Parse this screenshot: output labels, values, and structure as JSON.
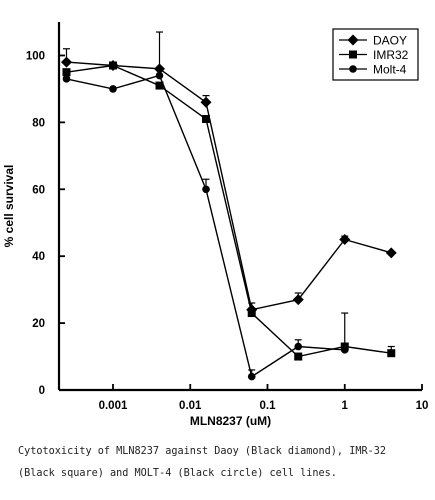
{
  "chart_data": {
    "type": "line",
    "xlabel": "MLN8237 (uM)",
    "ylabel": "% cell survival",
    "x_scale": "log",
    "xlim": [
      0.0002,
      10
    ],
    "ylim": [
      0,
      110
    ],
    "x_ticks": [
      0.001,
      0.01,
      0.1,
      1,
      10
    ],
    "x_tick_labels": [
      "0.001",
      "0.01",
      "0.1",
      "1",
      "10"
    ],
    "y_ticks": [
      0,
      20,
      40,
      60,
      80,
      100
    ],
    "y_tick_labels": [
      "0",
      "20",
      "40",
      "60",
      "80",
      "100"
    ],
    "grid": false,
    "legend_position": "top-right",
    "series": [
      {
        "name": "DAOY",
        "marker": "diamond",
        "points": [
          {
            "x": 0.00025,
            "y": 98,
            "err": 4
          },
          {
            "x": 0.001,
            "y": 97,
            "err": 0
          },
          {
            "x": 0.004,
            "y": 96,
            "err": 11
          },
          {
            "x": 0.016,
            "y": 86,
            "err": 2
          },
          {
            "x": 0.0625,
            "y": 24,
            "err": 2
          },
          {
            "x": 0.25,
            "y": 27,
            "err": 2
          },
          {
            "x": 1,
            "y": 45,
            "err": 1
          },
          {
            "x": 4,
            "y": 41,
            "err": 0
          }
        ]
      },
      {
        "name": "IMR32",
        "marker": "square",
        "points": [
          {
            "x": 0.00025,
            "y": 95,
            "err": 0
          },
          {
            "x": 0.001,
            "y": 97,
            "err": 0
          },
          {
            "x": 0.004,
            "y": 91,
            "err": 0
          },
          {
            "x": 0.016,
            "y": 81,
            "err": 0
          },
          {
            "x": 0.0625,
            "y": 23,
            "err": 0
          },
          {
            "x": 0.25,
            "y": 10,
            "err": 0
          },
          {
            "x": 1,
            "y": 13,
            "err": 10
          },
          {
            "x": 4,
            "y": 11,
            "err": 2
          }
        ]
      },
      {
        "name": "Molt-4",
        "marker": "circle",
        "points": [
          {
            "x": 0.00025,
            "y": 93,
            "err": 0
          },
          {
            "x": 0.001,
            "y": 90,
            "err": 0
          },
          {
            "x": 0.004,
            "y": 94,
            "err": 0
          },
          {
            "x": 0.016,
            "y": 60,
            "err": 3
          },
          {
            "x": 0.0625,
            "y": 4,
            "err": 2
          },
          {
            "x": 0.25,
            "y": 13,
            "err": 2
          },
          {
            "x": 1,
            "y": 12,
            "err": 0
          }
        ]
      }
    ]
  },
  "caption": {
    "line1": "Cytotoxicity of MLN8237 against Daoy (Black diamond), IMR-32",
    "line2": "(Black square) and MOLT-4 (Black circle) cell lines."
  }
}
